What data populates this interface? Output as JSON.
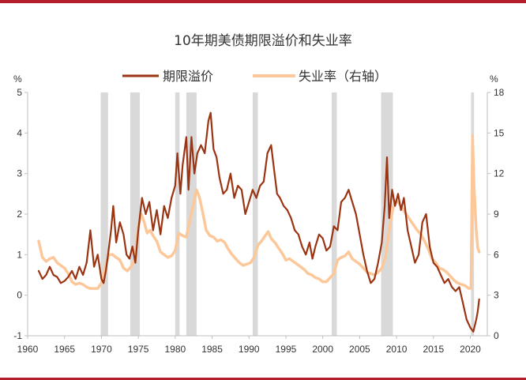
{
  "chart_data": {
    "type": "line",
    "title": "10年期美债期限溢价和失业率",
    "left_unit": "%",
    "right_unit": "%",
    "x_ticks": [
      "1960",
      "1965",
      "1970",
      "1975",
      "1980",
      "1985",
      "1990",
      "1995",
      "2000",
      "2005",
      "2010",
      "2015",
      "2020"
    ],
    "x_range": [
      1960,
      2022.3
    ],
    "y_left_ticks": [
      "-1",
      "0",
      "1",
      "2",
      "3",
      "4",
      "5"
    ],
    "y_left_range": [
      -1,
      5
    ],
    "y_right_ticks": [
      "0",
      "3",
      "6",
      "9",
      "12",
      "15",
      "18"
    ],
    "y_right_range": [
      0,
      18
    ],
    "recessions": [
      [
        1969.9,
        1970.9
      ],
      [
        1973.9,
        1975.2
      ],
      [
        1980.0,
        1980.6
      ],
      [
        1981.5,
        1982.9
      ],
      [
        1990.5,
        1991.2
      ],
      [
        2001.2,
        2001.9
      ],
      [
        2007.9,
        2009.5
      ],
      [
        2020.1,
        2020.5
      ]
    ],
    "series": [
      {
        "name": "期限溢价",
        "axis": "left",
        "color": "#9a3412",
        "points": [
          [
            1961.5,
            0.6
          ],
          [
            1962.0,
            0.4
          ],
          [
            1962.5,
            0.5
          ],
          [
            1963.0,
            0.7
          ],
          [
            1963.5,
            0.5
          ],
          [
            1964.0,
            0.45
          ],
          [
            1964.5,
            0.3
          ],
          [
            1965.0,
            0.35
          ],
          [
            1965.5,
            0.45
          ],
          [
            1966.0,
            0.6
          ],
          [
            1966.5,
            0.4
          ],
          [
            1967.0,
            0.7
          ],
          [
            1967.5,
            0.5
          ],
          [
            1968.0,
            0.8
          ],
          [
            1968.5,
            1.6
          ],
          [
            1969.0,
            0.7
          ],
          [
            1969.5,
            1.0
          ],
          [
            1970.0,
            0.4
          ],
          [
            1970.3,
            0.3
          ],
          [
            1970.6,
            0.6
          ],
          [
            1970.9,
            1.0
          ],
          [
            1971.3,
            1.6
          ],
          [
            1971.6,
            2.2
          ],
          [
            1972.0,
            1.3
          ],
          [
            1972.5,
            1.8
          ],
          [
            1973.0,
            1.5
          ],
          [
            1973.4,
            1.0
          ],
          [
            1973.8,
            0.9
          ],
          [
            1974.2,
            1.2
          ],
          [
            1974.6,
            0.8
          ],
          [
            1975.0,
            1.6
          ],
          [
            1975.5,
            2.4
          ],
          [
            1976.0,
            2.0
          ],
          [
            1976.5,
            2.3
          ],
          [
            1977.0,
            1.6
          ],
          [
            1977.5,
            2.1
          ],
          [
            1978.0,
            1.5
          ],
          [
            1978.5,
            2.2
          ],
          [
            1979.0,
            1.9
          ],
          [
            1979.5,
            2.4
          ],
          [
            1980.0,
            2.7
          ],
          [
            1980.3,
            3.5
          ],
          [
            1980.7,
            2.5
          ],
          [
            1981.0,
            3.2
          ],
          [
            1981.5,
            3.9
          ],
          [
            1981.8,
            2.6
          ],
          [
            1982.2,
            3.9
          ],
          [
            1982.6,
            3.0
          ],
          [
            1983.0,
            3.5
          ],
          [
            1983.5,
            3.7
          ],
          [
            1984.0,
            3.5
          ],
          [
            1984.5,
            4.3
          ],
          [
            1984.8,
            4.5
          ],
          [
            1985.2,
            3.6
          ],
          [
            1985.6,
            3.4
          ],
          [
            1986.0,
            2.9
          ],
          [
            1986.5,
            2.5
          ],
          [
            1987.0,
            2.6
          ],
          [
            1987.5,
            3.0
          ],
          [
            1988.0,
            2.4
          ],
          [
            1988.5,
            2.7
          ],
          [
            1989.0,
            2.6
          ],
          [
            1989.5,
            2.0
          ],
          [
            1990.0,
            2.3
          ],
          [
            1990.5,
            2.6
          ],
          [
            1991.0,
            2.4
          ],
          [
            1991.5,
            2.7
          ],
          [
            1992.0,
            2.8
          ],
          [
            1992.5,
            3.5
          ],
          [
            1993.0,
            3.7
          ],
          [
            1993.4,
            3.1
          ],
          [
            1993.8,
            2.5
          ],
          [
            1994.2,
            2.4
          ],
          [
            1994.7,
            2.2
          ],
          [
            1995.2,
            2.1
          ],
          [
            1995.7,
            1.9
          ],
          [
            1996.2,
            1.6
          ],
          [
            1996.7,
            1.5
          ],
          [
            1997.2,
            1.2
          ],
          [
            1997.7,
            1.0
          ],
          [
            1998.2,
            1.3
          ],
          [
            1998.6,
            0.9
          ],
          [
            1999.0,
            1.2
          ],
          [
            1999.5,
            1.5
          ],
          [
            2000.0,
            1.4
          ],
          [
            2000.5,
            1.1
          ],
          [
            2001.0,
            1.2
          ],
          [
            2001.5,
            1.7
          ],
          [
            2002.0,
            1.6
          ],
          [
            2002.5,
            2.3
          ],
          [
            2003.0,
            2.4
          ],
          [
            2003.5,
            2.6
          ],
          [
            2004.0,
            2.3
          ],
          [
            2004.5,
            2.0
          ],
          [
            2005.0,
            1.5
          ],
          [
            2005.5,
            1.0
          ],
          [
            2006.0,
            0.6
          ],
          [
            2006.5,
            0.3
          ],
          [
            2007.0,
            0.4
          ],
          [
            2007.5,
            0.8
          ],
          [
            2008.0,
            1.3
          ],
          [
            2008.4,
            2.2
          ],
          [
            2008.7,
            3.4
          ],
          [
            2009.0,
            1.9
          ],
          [
            2009.4,
            2.6
          ],
          [
            2009.8,
            2.2
          ],
          [
            2010.2,
            2.5
          ],
          [
            2010.6,
            2.1
          ],
          [
            2011.0,
            2.4
          ],
          [
            2011.5,
            1.6
          ],
          [
            2012.0,
            1.2
          ],
          [
            2012.5,
            0.8
          ],
          [
            2013.0,
            1.0
          ],
          [
            2013.5,
            1.8
          ],
          [
            2014.0,
            2.0
          ],
          [
            2014.5,
            1.2
          ],
          [
            2015.0,
            0.8
          ],
          [
            2015.5,
            0.7
          ],
          [
            2016.0,
            0.5
          ],
          [
            2016.5,
            0.3
          ],
          [
            2017.0,
            0.4
          ],
          [
            2017.5,
            0.2
          ],
          [
            2018.0,
            0.1
          ],
          [
            2018.5,
            0.2
          ],
          [
            2019.0,
            -0.2
          ],
          [
            2019.5,
            -0.6
          ],
          [
            2020.0,
            -0.8
          ],
          [
            2020.4,
            -0.9
          ],
          [
            2020.8,
            -0.6
          ],
          [
            2021.0,
            -0.4
          ],
          [
            2021.2,
            -0.1
          ]
        ]
      },
      {
        "name": "失业率（右轴）",
        "axis": "right",
        "color": "#fcc799",
        "points": [
          [
            1961.5,
            7.0
          ],
          [
            1962.0,
            5.8
          ],
          [
            1962.5,
            5.5
          ],
          [
            1963.0,
            5.7
          ],
          [
            1963.5,
            5.8
          ],
          [
            1964.0,
            5.4
          ],
          [
            1964.5,
            5.2
          ],
          [
            1965.0,
            5.0
          ],
          [
            1965.5,
            4.6
          ],
          [
            1966.0,
            4.0
          ],
          [
            1966.5,
            3.8
          ],
          [
            1967.0,
            3.9
          ],
          [
            1967.5,
            3.8
          ],
          [
            1968.0,
            3.6
          ],
          [
            1968.5,
            3.5
          ],
          [
            1969.0,
            3.5
          ],
          [
            1969.5,
            3.5
          ],
          [
            1970.0,
            3.9
          ],
          [
            1970.5,
            5.0
          ],
          [
            1971.0,
            6.0
          ],
          [
            1971.5,
            6.0
          ],
          [
            1972.0,
            5.8
          ],
          [
            1972.5,
            5.6
          ],
          [
            1973.0,
            5.0
          ],
          [
            1973.5,
            4.8
          ],
          [
            1974.0,
            5.1
          ],
          [
            1974.5,
            5.6
          ],
          [
            1975.0,
            8.1
          ],
          [
            1975.4,
            9.0
          ],
          [
            1975.8,
            8.4
          ],
          [
            1976.2,
            7.6
          ],
          [
            1976.6,
            7.8
          ],
          [
            1977.0,
            7.4
          ],
          [
            1977.5,
            7.0
          ],
          [
            1978.0,
            6.2
          ],
          [
            1978.5,
            6.0
          ],
          [
            1979.0,
            5.8
          ],
          [
            1979.5,
            5.9
          ],
          [
            1980.0,
            6.3
          ],
          [
            1980.5,
            7.6
          ],
          [
            1981.0,
            7.4
          ],
          [
            1981.5,
            7.3
          ],
          [
            1982.0,
            8.6
          ],
          [
            1982.5,
            9.8
          ],
          [
            1982.9,
            10.8
          ],
          [
            1983.3,
            10.2
          ],
          [
            1983.7,
            9.2
          ],
          [
            1984.2,
            7.8
          ],
          [
            1984.7,
            7.4
          ],
          [
            1985.2,
            7.3
          ],
          [
            1985.7,
            7.0
          ],
          [
            1986.2,
            7.1
          ],
          [
            1986.7,
            6.9
          ],
          [
            1987.2,
            6.4
          ],
          [
            1987.7,
            6.0
          ],
          [
            1988.2,
            5.7
          ],
          [
            1988.7,
            5.4
          ],
          [
            1989.2,
            5.2
          ],
          [
            1989.7,
            5.3
          ],
          [
            1990.2,
            5.4
          ],
          [
            1990.7,
            5.8
          ],
          [
            1991.2,
            6.7
          ],
          [
            1991.7,
            7.0
          ],
          [
            1992.2,
            7.4
          ],
          [
            1992.6,
            7.7
          ],
          [
            1993.0,
            7.2
          ],
          [
            1993.5,
            6.9
          ],
          [
            1994.0,
            6.5
          ],
          [
            1994.5,
            6.1
          ],
          [
            1995.0,
            5.6
          ],
          [
            1995.5,
            5.7
          ],
          [
            1996.0,
            5.5
          ],
          [
            1996.5,
            5.3
          ],
          [
            1997.0,
            5.1
          ],
          [
            1997.5,
            4.9
          ],
          [
            1998.0,
            4.6
          ],
          [
            1998.5,
            4.5
          ],
          [
            1999.0,
            4.3
          ],
          [
            1999.5,
            4.2
          ],
          [
            2000.0,
            4.0
          ],
          [
            2000.5,
            4.0
          ],
          [
            2001.0,
            4.3
          ],
          [
            2001.5,
            4.6
          ],
          [
            2002.0,
            5.6
          ],
          [
            2002.5,
            5.8
          ],
          [
            2003.0,
            5.9
          ],
          [
            2003.5,
            6.2
          ],
          [
            2004.0,
            5.7
          ],
          [
            2004.5,
            5.5
          ],
          [
            2005.0,
            5.3
          ],
          [
            2005.5,
            5.0
          ],
          [
            2006.0,
            4.7
          ],
          [
            2006.5,
            4.6
          ],
          [
            2007.0,
            4.5
          ],
          [
            2007.5,
            4.7
          ],
          [
            2008.0,
            5.0
          ],
          [
            2008.5,
            5.8
          ],
          [
            2009.0,
            7.8
          ],
          [
            2009.5,
            9.4
          ],
          [
            2009.9,
            10.0
          ],
          [
            2010.3,
            9.8
          ],
          [
            2010.8,
            9.4
          ],
          [
            2011.3,
            9.0
          ],
          [
            2011.8,
            8.6
          ],
          [
            2012.3,
            8.2
          ],
          [
            2012.8,
            7.8
          ],
          [
            2013.3,
            7.5
          ],
          [
            2013.8,
            7.0
          ],
          [
            2014.3,
            6.4
          ],
          [
            2014.8,
            5.7
          ],
          [
            2015.3,
            5.4
          ],
          [
            2015.8,
            5.0
          ],
          [
            2016.3,
            4.9
          ],
          [
            2016.8,
            4.7
          ],
          [
            2017.3,
            4.4
          ],
          [
            2017.8,
            4.1
          ],
          [
            2018.3,
            3.9
          ],
          [
            2018.8,
            3.8
          ],
          [
            2019.3,
            3.7
          ],
          [
            2019.8,
            3.5
          ],
          [
            2020.1,
            3.5
          ],
          [
            2020.3,
            14.8
          ],
          [
            2020.5,
            11.1
          ],
          [
            2020.8,
            7.8
          ],
          [
            2021.0,
            6.5
          ],
          [
            2021.2,
            6.2
          ]
        ]
      }
    ]
  }
}
